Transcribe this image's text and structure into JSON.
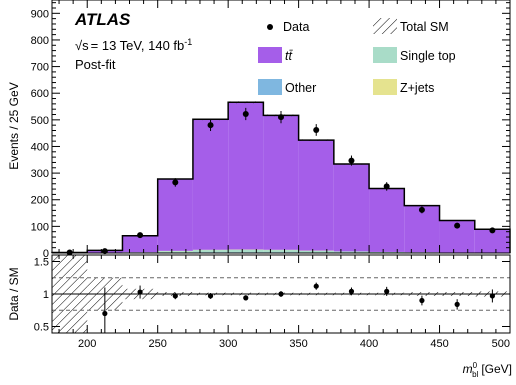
{
  "chart_data": [
    {
      "type": "bar",
      "panel": "main",
      "ylabel": "Events / 25 GeV",
      "ylim": [
        0,
        950
      ],
      "xlim": [
        175,
        500
      ],
      "yticks": [
        0,
        100,
        200,
        300,
        400,
        500,
        600,
        700,
        800,
        900
      ],
      "annotations": {
        "experiment": "ATLAS",
        "sqrt_s_symbol": "√s",
        "energy_lumi": "= 13 TeV, 140 fb",
        "lumi_exp": "-1",
        "fit_state": "Post-fit"
      },
      "bin_edges": [
        175,
        200,
        225,
        250,
        275,
        300,
        325,
        350,
        375,
        400,
        425,
        450,
        475,
        500
      ],
      "series": [
        {
          "name": "t t̄",
          "label_main": "t",
          "label_bar": "t̄",
          "kind": "stack",
          "color": "#a55ee9",
          "values": [
            2,
            10,
            62,
            270,
            490,
            553,
            505,
            415,
            328,
            238,
            175,
            120,
            88
          ]
        },
        {
          "name": "Single top",
          "kind": "stack",
          "color": "#a9dcc8",
          "values": [
            0,
            0,
            2,
            5,
            8,
            9,
            8,
            6,
            4,
            3,
            2,
            1,
            1
          ]
        },
        {
          "name": "Other",
          "kind": "stack",
          "color": "#7fb7e0",
          "values": [
            0,
            0,
            1,
            2,
            3,
            3,
            3,
            2,
            2,
            1,
            1,
            1,
            0
          ]
        },
        {
          "name": "Z+jets",
          "kind": "stack",
          "color": "#e5e38f",
          "values": [
            0,
            0,
            0,
            1,
            1,
            1,
            1,
            1,
            0,
            0,
            0,
            0,
            0
          ]
        },
        {
          "name": "Total SM",
          "kind": "band",
          "values": [
            2,
            10,
            65,
            278,
            502,
            566,
            517,
            424,
            334,
            242,
            178,
            122,
            89
          ]
        },
        {
          "name": "Data",
          "kind": "points",
          "x": [
            187.5,
            212.5,
            237.5,
            262.5,
            287.5,
            312.5,
            337.5,
            362.5,
            387.5,
            412.5,
            437.5,
            462.5,
            487.5
          ],
          "values": [
            2,
            7,
            67,
            265,
            480,
            522,
            510,
            462,
            347,
            250,
            162,
            103,
            85
          ],
          "errors": [
            2,
            3,
            8,
            16,
            22,
            23,
            23,
            22,
            19,
            16,
            13,
            10,
            9
          ]
        }
      ],
      "legend": {
        "placement": "top-right",
        "entries": [
          "Data",
          "Total SM",
          "t t̄",
          "Single top",
          "Other",
          "Z+jets"
        ]
      }
    },
    {
      "type": "scatter",
      "panel": "ratio",
      "ylabel": "Data / SM",
      "ylim": [
        0.4,
        1.6
      ],
      "yticks": [
        0.5,
        1,
        1.5
      ],
      "xlim": [
        175,
        500
      ],
      "xticks": [
        200,
        250,
        300,
        350,
        400,
        450,
        500
      ],
      "xlabel_main": "m",
      "xlabel_sup": "0",
      "xlabel_sub": "bl",
      "xlabel_unit": "[GeV]",
      "reference_lines": [
        0.75,
        1.0,
        1.25
      ],
      "x": [
        212.5,
        237.5,
        262.5,
        287.5,
        312.5,
        337.5,
        362.5,
        387.5,
        412.5,
        437.5,
        462.5,
        487.5
      ],
      "values": [
        0.7,
        1.03,
        0.97,
        0.97,
        0.94,
        1.0,
        1.12,
        1.04,
        1.04,
        0.9,
        0.84,
        0.97
      ],
      "errors": [
        0.4,
        0.1,
        0.05,
        0.045,
        0.04,
        0.045,
        0.055,
        0.06,
        0.07,
        0.075,
        0.08,
        0.1
      ],
      "uncertainty_band": {
        "x_edges": [
          175,
          200,
          225,
          250,
          275,
          300,
          325,
          350,
          375,
          400,
          425,
          450,
          475,
          500
        ],
        "half_width": [
          1.0,
          0.25,
          0.08,
          0.03,
          0.02,
          0.02,
          0.02,
          0.02,
          0.02,
          0.02,
          0.03,
          0.03,
          0.04
        ]
      }
    }
  ]
}
